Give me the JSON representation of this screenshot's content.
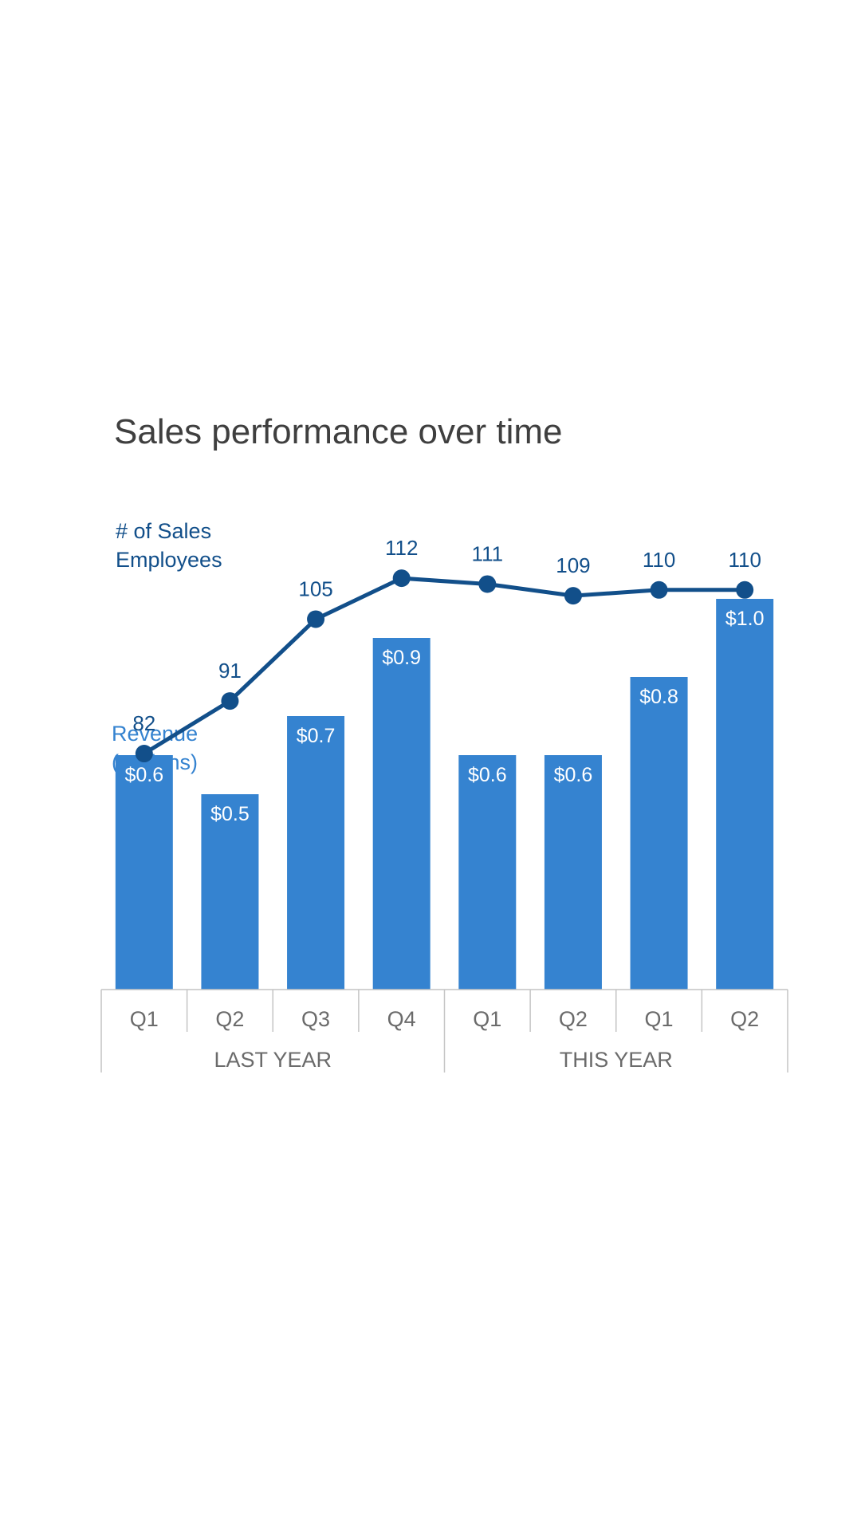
{
  "title": "Sales performance over time",
  "colors": {
    "bar": "#3583d0",
    "line": "#124f8a",
    "revenue_label": "#3583d0",
    "title": "#3f3f3f",
    "axis_text": "#6b6b6b",
    "axis_line": "#c4c4c4",
    "bar_label_text": "#ffffff"
  },
  "chart_data": {
    "type": "bar",
    "title": "Sales performance over time",
    "categories": [
      "Q1",
      "Q2",
      "Q3",
      "Q4",
      "Q1",
      "Q2",
      "Q1",
      "Q2"
    ],
    "groups": [
      {
        "label": "LAST YEAR",
        "span": 4
      },
      {
        "label": "THIS YEAR",
        "span": 4
      }
    ],
    "series": [
      {
        "name": "Revenue (millions)",
        "label_lines": [
          "Revenue",
          "(millions)"
        ],
        "type": "bar",
        "values": [
          0.6,
          0.5,
          0.7,
          0.9,
          0.6,
          0.6,
          0.8,
          1.0
        ],
        "labels": [
          "$0.6",
          "$0.5",
          "$0.7",
          "$0.9",
          "$0.6",
          "$0.6",
          "$0.8",
          "$1.0"
        ]
      },
      {
        "name": "# of Sales Employees",
        "label_lines": [
          "# of Sales",
          "Employees"
        ],
        "type": "line",
        "values": [
          82,
          91,
          105,
          112,
          111,
          109,
          110,
          110
        ],
        "labels": [
          "82",
          "91",
          "105",
          "112",
          "111",
          "109",
          "110",
          "110"
        ]
      }
    ],
    "xlabel": "",
    "ylabel": "",
    "grid": false
  }
}
